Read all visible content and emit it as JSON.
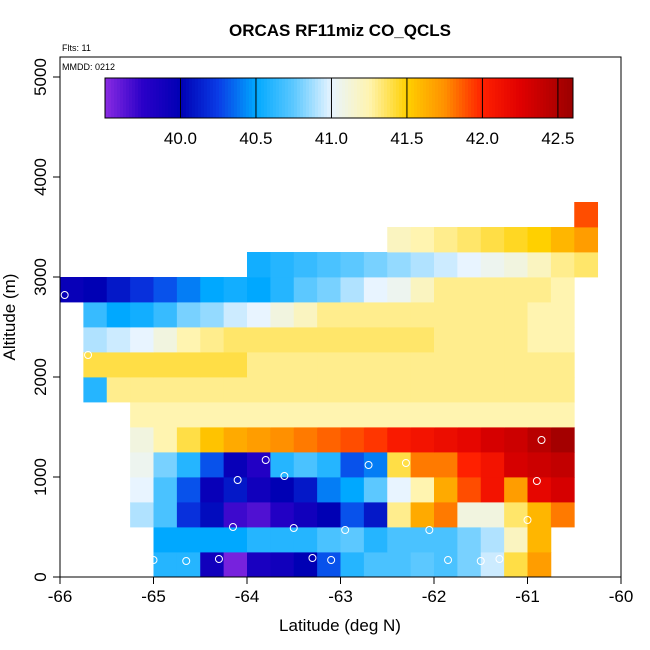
{
  "chart_data": {
    "type": "heatmap",
    "title": "ORCAS RF11miz CO_QCLS",
    "annotations": {
      "flights": "Flts: 11",
      "date": "MMDD: 0212"
    },
    "xlabel": "Latitude (deg N)",
    "ylabel": "Altitude (m)",
    "xlim": [
      -66,
      -60
    ],
    "ylim": [
      0,
      5200
    ],
    "x_ticks": [
      -66,
      -65,
      -64,
      -63,
      -62,
      -61,
      -60
    ],
    "x_tick_labels": [
      "-66",
      "-65",
      "-64",
      "-63",
      "-62",
      "-61",
      "-60"
    ],
    "y_ticks": [
      0,
      1000,
      2000,
      3000,
      4000,
      5000
    ],
    "y_tick_labels": [
      "0",
      "1000",
      "2000",
      "3000",
      "4000",
      "5000"
    ],
    "colorbar": {
      "min": 39.5,
      "max": 42.6,
      "ticks": [
        40.0,
        40.5,
        41.0,
        41.5,
        42.0,
        42.5
      ],
      "tick_labels": [
        "40.0",
        "40.5",
        "41.0",
        "41.5",
        "42.0",
        "42.5"
      ],
      "stops": [
        {
          "v": 39.5,
          "c": "#8a2be2"
        },
        {
          "v": 39.75,
          "c": "#2a00c8"
        },
        {
          "v": 40.0,
          "c": "#0000b4"
        },
        {
          "v": 40.25,
          "c": "#0a3ce6"
        },
        {
          "v": 40.5,
          "c": "#00a8ff"
        },
        {
          "v": 40.75,
          "c": "#5cc8ff"
        },
        {
          "v": 41.0,
          "c": "#e8f4ff"
        },
        {
          "v": 41.25,
          "c": "#fff4b0"
        },
        {
          "v": 41.5,
          "c": "#ffd000"
        },
        {
          "v": 41.75,
          "c": "#ff9000"
        },
        {
          "v": 42.0,
          "c": "#ff2000"
        },
        {
          "v": 42.25,
          "c": "#e00000"
        },
        {
          "v": 42.6,
          "c": "#9a0000"
        }
      ]
    },
    "cell_size": {
      "dlat": 0.25,
      "dalt": 250
    },
    "cells": [
      [
        -65.0,
        0,
        40.6
      ],
      [
        -64.75,
        0,
        40.6
      ],
      [
        -64.5,
        0,
        39.9
      ],
      [
        -64.25,
        0,
        39.55
      ],
      [
        -64.0,
        0,
        39.85
      ],
      [
        -63.75,
        0,
        39.9
      ],
      [
        -63.5,
        0,
        40.0
      ],
      [
        -63.25,
        0,
        40.3
      ],
      [
        -63.0,
        0,
        40.6
      ],
      [
        -62.75,
        0,
        40.7
      ],
      [
        -62.5,
        0,
        40.7
      ],
      [
        -62.25,
        0,
        40.75
      ],
      [
        -62.0,
        0,
        40.7
      ],
      [
        -61.75,
        0,
        40.8
      ],
      [
        -61.5,
        0,
        40.95
      ],
      [
        -61.25,
        0,
        41.4
      ],
      [
        -61.0,
        0,
        41.7
      ],
      [
        -65.0,
        250,
        40.5
      ],
      [
        -64.75,
        250,
        40.5
      ],
      [
        -64.5,
        250,
        40.5
      ],
      [
        -64.25,
        250,
        40.5
      ],
      [
        -64.0,
        250,
        40.6
      ],
      [
        -63.75,
        250,
        40.6
      ],
      [
        -63.5,
        250,
        40.6
      ],
      [
        -63.25,
        250,
        40.7
      ],
      [
        -63.0,
        250,
        40.75
      ],
      [
        -62.75,
        250,
        40.6
      ],
      [
        -62.5,
        250,
        40.7
      ],
      [
        -62.25,
        250,
        40.7
      ],
      [
        -62.0,
        250,
        40.7
      ],
      [
        -61.75,
        250,
        40.8
      ],
      [
        -61.5,
        250,
        40.9
      ],
      [
        -61.25,
        250,
        41.2
      ],
      [
        -61.0,
        250,
        41.6
      ],
      [
        -65.25,
        500,
        40.9
      ],
      [
        -65.0,
        500,
        40.7
      ],
      [
        -64.75,
        500,
        40.2
      ],
      [
        -64.5,
        500,
        40.05
      ],
      [
        -64.25,
        500,
        39.7
      ],
      [
        -64.0,
        500,
        39.65
      ],
      [
        -63.75,
        500,
        39.8
      ],
      [
        -63.5,
        500,
        39.9
      ],
      [
        -63.25,
        500,
        40.0
      ],
      [
        -63.0,
        500,
        40.3
      ],
      [
        -62.75,
        500,
        40.1
      ],
      [
        -62.5,
        500,
        41.3
      ],
      [
        -62.25,
        500,
        41.65
      ],
      [
        -62.0,
        500,
        41.8
      ],
      [
        -61.75,
        500,
        41.1
      ],
      [
        -61.5,
        500,
        41.1
      ],
      [
        -61.25,
        500,
        41.35
      ],
      [
        -61.0,
        500,
        41.6
      ],
      [
        -60.75,
        500,
        41.8
      ],
      [
        -65.25,
        750,
        41.0
      ],
      [
        -65.0,
        750,
        40.7
      ],
      [
        -64.75,
        750,
        40.3
      ],
      [
        -64.5,
        750,
        39.95
      ],
      [
        -64.25,
        750,
        40.1
      ],
      [
        -64.0,
        750,
        39.9
      ],
      [
        -63.75,
        750,
        40.0
      ],
      [
        -63.5,
        750,
        40.1
      ],
      [
        -63.25,
        750,
        40.4
      ],
      [
        -63.0,
        750,
        40.5
      ],
      [
        -62.75,
        750,
        40.75
      ],
      [
        -62.5,
        750,
        41.0
      ],
      [
        -62.25,
        750,
        41.25
      ],
      [
        -62.0,
        750,
        41.65
      ],
      [
        -61.75,
        750,
        41.9
      ],
      [
        -61.5,
        750,
        42.1
      ],
      [
        -61.25,
        750,
        41.7
      ],
      [
        -61.0,
        750,
        42.2
      ],
      [
        -60.75,
        750,
        42.3
      ],
      [
        -65.25,
        1000,
        41.05
      ],
      [
        -65.0,
        1000,
        40.8
      ],
      [
        -64.75,
        1000,
        40.6
      ],
      [
        -64.5,
        1000,
        40.3
      ],
      [
        -64.25,
        1000,
        39.95
      ],
      [
        -64.0,
        1000,
        39.8
      ],
      [
        -63.75,
        1000,
        40.6
      ],
      [
        -63.5,
        1000,
        40.7
      ],
      [
        -63.25,
        1000,
        40.6
      ],
      [
        -63.0,
        1000,
        40.3
      ],
      [
        -62.75,
        1000,
        40.4
      ],
      [
        -62.5,
        1000,
        41.4
      ],
      [
        -62.25,
        1000,
        41.8
      ],
      [
        -62.0,
        1000,
        41.8
      ],
      [
        -61.75,
        1000,
        42.0
      ],
      [
        -61.5,
        1000,
        42.1
      ],
      [
        -61.25,
        1000,
        42.3
      ],
      [
        -61.0,
        1000,
        42.35
      ],
      [
        -60.75,
        1000,
        42.4
      ],
      [
        -65.25,
        1250,
        41.1
      ],
      [
        -65.0,
        1250,
        41.25
      ],
      [
        -64.75,
        1250,
        41.4
      ],
      [
        -64.5,
        1250,
        41.55
      ],
      [
        -64.25,
        1250,
        41.65
      ],
      [
        -64.0,
        1250,
        41.7
      ],
      [
        -63.75,
        1250,
        41.75
      ],
      [
        -63.5,
        1250,
        41.8
      ],
      [
        -63.25,
        1250,
        41.85
      ],
      [
        -63.0,
        1250,
        41.9
      ],
      [
        -62.75,
        1250,
        41.95
      ],
      [
        -62.5,
        1250,
        42.05
      ],
      [
        -62.25,
        1250,
        42.1
      ],
      [
        -62.0,
        1250,
        42.15
      ],
      [
        -61.75,
        1250,
        42.2
      ],
      [
        -61.5,
        1250,
        42.3
      ],
      [
        -61.25,
        1250,
        42.35
      ],
      [
        -61.0,
        1250,
        42.45
      ],
      [
        -60.75,
        1250,
        42.55
      ],
      [
        -65.25,
        1500,
        41.25
      ],
      [
        -65.0,
        1500,
        41.25
      ],
      [
        -64.75,
        1500,
        41.25
      ],
      [
        -64.5,
        1500,
        41.25
      ],
      [
        -64.25,
        1500,
        41.25
      ],
      [
        -64.0,
        1500,
        41.25
      ],
      [
        -63.75,
        1500,
        41.25
      ],
      [
        -63.5,
        1500,
        41.25
      ],
      [
        -63.25,
        1500,
        41.25
      ],
      [
        -63.0,
        1500,
        41.25
      ],
      [
        -62.75,
        1500,
        41.25
      ],
      [
        -62.5,
        1500,
        41.25
      ],
      [
        -62.25,
        1500,
        41.25
      ],
      [
        -62.0,
        1500,
        41.25
      ],
      [
        -61.75,
        1500,
        41.25
      ],
      [
        -61.5,
        1500,
        41.25
      ],
      [
        -61.25,
        1500,
        41.25
      ],
      [
        -61.0,
        1500,
        41.25
      ],
      [
        -60.75,
        1500,
        41.25
      ],
      [
        -65.75,
        1750,
        40.6
      ],
      [
        -65.5,
        1750,
        41.3
      ],
      [
        -65.25,
        1750,
        41.3
      ],
      [
        -65.0,
        1750,
        41.3
      ],
      [
        -64.75,
        1750,
        41.3
      ],
      [
        -64.5,
        1750,
        41.3
      ],
      [
        -64.25,
        1750,
        41.3
      ],
      [
        -64.0,
        1750,
        41.3
      ],
      [
        -63.75,
        1750,
        41.3
      ],
      [
        -63.5,
        1750,
        41.3
      ],
      [
        -63.25,
        1750,
        41.3
      ],
      [
        -63.0,
        1750,
        41.3
      ],
      [
        -62.75,
        1750,
        41.3
      ],
      [
        -62.5,
        1750,
        41.3
      ],
      [
        -62.25,
        1750,
        41.3
      ],
      [
        -62.0,
        1750,
        41.3
      ],
      [
        -61.75,
        1750,
        41.3
      ],
      [
        -61.5,
        1750,
        41.3
      ],
      [
        -61.25,
        1750,
        41.3
      ],
      [
        -61.0,
        1750,
        41.3
      ],
      [
        -60.75,
        1750,
        41.3
      ],
      [
        -65.75,
        2000,
        41.4
      ],
      [
        -65.5,
        2000,
        41.4
      ],
      [
        -65.25,
        2000,
        41.4
      ],
      [
        -65.0,
        2000,
        41.4
      ],
      [
        -64.75,
        2000,
        41.4
      ],
      [
        -64.5,
        2000,
        41.4
      ],
      [
        -64.25,
        2000,
        41.4
      ],
      [
        -64.0,
        2000,
        41.3
      ],
      [
        -63.75,
        2000,
        41.3
      ],
      [
        -63.5,
        2000,
        41.3
      ],
      [
        -63.25,
        2000,
        41.3
      ],
      [
        -63.0,
        2000,
        41.3
      ],
      [
        -62.75,
        2000,
        41.3
      ],
      [
        -62.5,
        2000,
        41.3
      ],
      [
        -62.25,
        2000,
        41.3
      ],
      [
        -62.0,
        2000,
        41.3
      ],
      [
        -61.75,
        2000,
        41.3
      ],
      [
        -61.5,
        2000,
        41.3
      ],
      [
        -61.25,
        2000,
        41.3
      ],
      [
        -61.0,
        2000,
        41.3
      ],
      [
        -60.75,
        2000,
        41.3
      ],
      [
        -65.75,
        2250,
        40.9
      ],
      [
        -65.5,
        2250,
        40.95
      ],
      [
        -65.25,
        2250,
        41.0
      ],
      [
        -65.0,
        2250,
        41.1
      ],
      [
        -64.75,
        2250,
        41.25
      ],
      [
        -64.5,
        2250,
        41.3
      ],
      [
        -64.25,
        2250,
        41.35
      ],
      [
        -64.0,
        2250,
        41.35
      ],
      [
        -63.75,
        2250,
        41.35
      ],
      [
        -63.5,
        2250,
        41.35
      ],
      [
        -63.25,
        2250,
        41.35
      ],
      [
        -63.0,
        2250,
        41.35
      ],
      [
        -62.75,
        2250,
        41.35
      ],
      [
        -62.5,
        2250,
        41.35
      ],
      [
        -62.25,
        2250,
        41.35
      ],
      [
        -62.0,
        2250,
        41.3
      ],
      [
        -61.75,
        2250,
        41.3
      ],
      [
        -61.5,
        2250,
        41.3
      ],
      [
        -61.25,
        2250,
        41.3
      ],
      [
        -61.0,
        2250,
        41.25
      ],
      [
        -60.75,
        2250,
        41.25
      ],
      [
        -65.75,
        2500,
        40.65
      ],
      [
        -65.5,
        2500,
        40.5
      ],
      [
        -65.25,
        2500,
        40.55
      ],
      [
        -65.0,
        2500,
        40.65
      ],
      [
        -64.75,
        2500,
        40.8
      ],
      [
        -64.5,
        2500,
        40.85
      ],
      [
        -64.25,
        2500,
        40.95
      ],
      [
        -64.0,
        2500,
        41.0
      ],
      [
        -63.75,
        2500,
        41.1
      ],
      [
        -63.5,
        2500,
        41.2
      ],
      [
        -63.25,
        2500,
        41.3
      ],
      [
        -63.0,
        2500,
        41.3
      ],
      [
        -62.75,
        2500,
        41.3
      ],
      [
        -62.5,
        2500,
        41.3
      ],
      [
        -62.25,
        2500,
        41.3
      ],
      [
        -62.0,
        2500,
        41.3
      ],
      [
        -61.75,
        2500,
        41.3
      ],
      [
        -61.5,
        2500,
        41.3
      ],
      [
        -61.25,
        2500,
        41.3
      ],
      [
        -61.0,
        2500,
        41.25
      ],
      [
        -60.75,
        2500,
        41.25
      ],
      [
        -66.0,
        2750,
        39.95
      ],
      [
        -65.75,
        2750,
        40.0
      ],
      [
        -65.5,
        2750,
        40.1
      ],
      [
        -65.25,
        2750,
        40.2
      ],
      [
        -65.0,
        2750,
        40.3
      ],
      [
        -64.75,
        2750,
        40.4
      ],
      [
        -64.5,
        2750,
        40.5
      ],
      [
        -64.25,
        2750,
        40.55
      ],
      [
        -64.0,
        2750,
        40.5
      ],
      [
        -63.75,
        2750,
        40.6
      ],
      [
        -63.5,
        2750,
        40.75
      ],
      [
        -63.25,
        2750,
        40.8
      ],
      [
        -63.0,
        2750,
        40.9
      ],
      [
        -62.75,
        2750,
        41.0
      ],
      [
        -62.5,
        2750,
        41.05
      ],
      [
        -62.25,
        2750,
        41.2
      ],
      [
        -62.0,
        2750,
        41.3
      ],
      [
        -61.75,
        2750,
        41.3
      ],
      [
        -61.5,
        2750,
        41.3
      ],
      [
        -61.25,
        2750,
        41.3
      ],
      [
        -61.0,
        2750,
        41.3
      ],
      [
        -60.75,
        2750,
        41.25
      ],
      [
        -64.0,
        3000,
        40.55
      ],
      [
        -63.75,
        3000,
        40.6
      ],
      [
        -63.5,
        3000,
        40.65
      ],
      [
        -63.25,
        3000,
        40.7
      ],
      [
        -63.0,
        3000,
        40.75
      ],
      [
        -62.75,
        3000,
        40.8
      ],
      [
        -62.5,
        3000,
        40.85
      ],
      [
        -62.25,
        3000,
        40.9
      ],
      [
        -62.0,
        3000,
        40.95
      ],
      [
        -61.75,
        3000,
        41.0
      ],
      [
        -61.5,
        3000,
        41.05
      ],
      [
        -61.25,
        3000,
        41.1
      ],
      [
        -61.0,
        3000,
        41.2
      ],
      [
        -60.75,
        3000,
        41.3
      ],
      [
        -60.5,
        3000,
        41.35
      ],
      [
        -62.5,
        3250,
        41.2
      ],
      [
        -62.25,
        3250,
        41.25
      ],
      [
        -62.0,
        3250,
        41.3
      ],
      [
        -61.75,
        3250,
        41.35
      ],
      [
        -61.5,
        3250,
        41.4
      ],
      [
        -61.25,
        3250,
        41.45
      ],
      [
        -61.0,
        3250,
        41.5
      ],
      [
        -60.75,
        3250,
        41.6
      ],
      [
        -60.5,
        3250,
        41.7
      ],
      [
        -60.5,
        3500,
        41.9
      ]
    ],
    "markers": [
      [
        -65.95,
        2820
      ],
      [
        -65.7,
        2220
      ],
      [
        -65.4,
        950
      ],
      [
        -65.3,
        530
      ],
      [
        -65.0,
        170
      ],
      [
        -64.65,
        160
      ],
      [
        -64.3,
        180
      ],
      [
        -64.15,
        500
      ],
      [
        -64.1,
        970
      ],
      [
        -63.8,
        1170
      ],
      [
        -63.6,
        1010
      ],
      [
        -63.5,
        490
      ],
      [
        -63.3,
        190
      ],
      [
        -63.1,
        170
      ],
      [
        -62.95,
        470
      ],
      [
        -62.7,
        1120
      ],
      [
        -62.3,
        1140
      ],
      [
        -62.05,
        470
      ],
      [
        -61.85,
        170
      ],
      [
        -61.5,
        160
      ],
      [
        -61.3,
        180
      ],
      [
        -61.0,
        570
      ],
      [
        -60.9,
        960
      ],
      [
        -60.85,
        1370
      ],
      [
        -60.6,
        3620
      ]
    ]
  }
}
